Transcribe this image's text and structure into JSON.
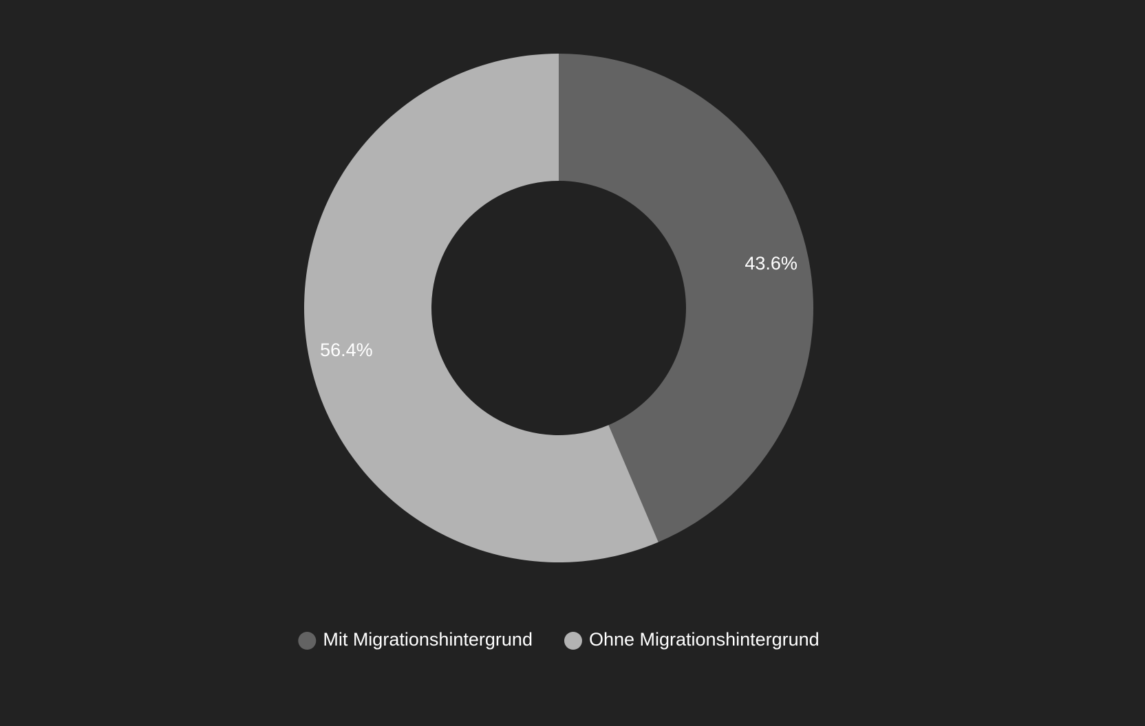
{
  "chart_data": {
    "type": "donut",
    "title": "",
    "categories": [
      "Mit Migrationshintergrund",
      "Ohne Migrationshintergrund"
    ],
    "values": [
      43.6,
      56.4
    ],
    "value_labels": [
      "43.6%",
      "56.4%"
    ],
    "colors": [
      "#636363",
      "#b3b3b3"
    ],
    "legend_position": "bottom",
    "start": "top",
    "direction": "clockwise"
  },
  "theme": {
    "background": "#222222",
    "text_color": "#ffffff"
  }
}
